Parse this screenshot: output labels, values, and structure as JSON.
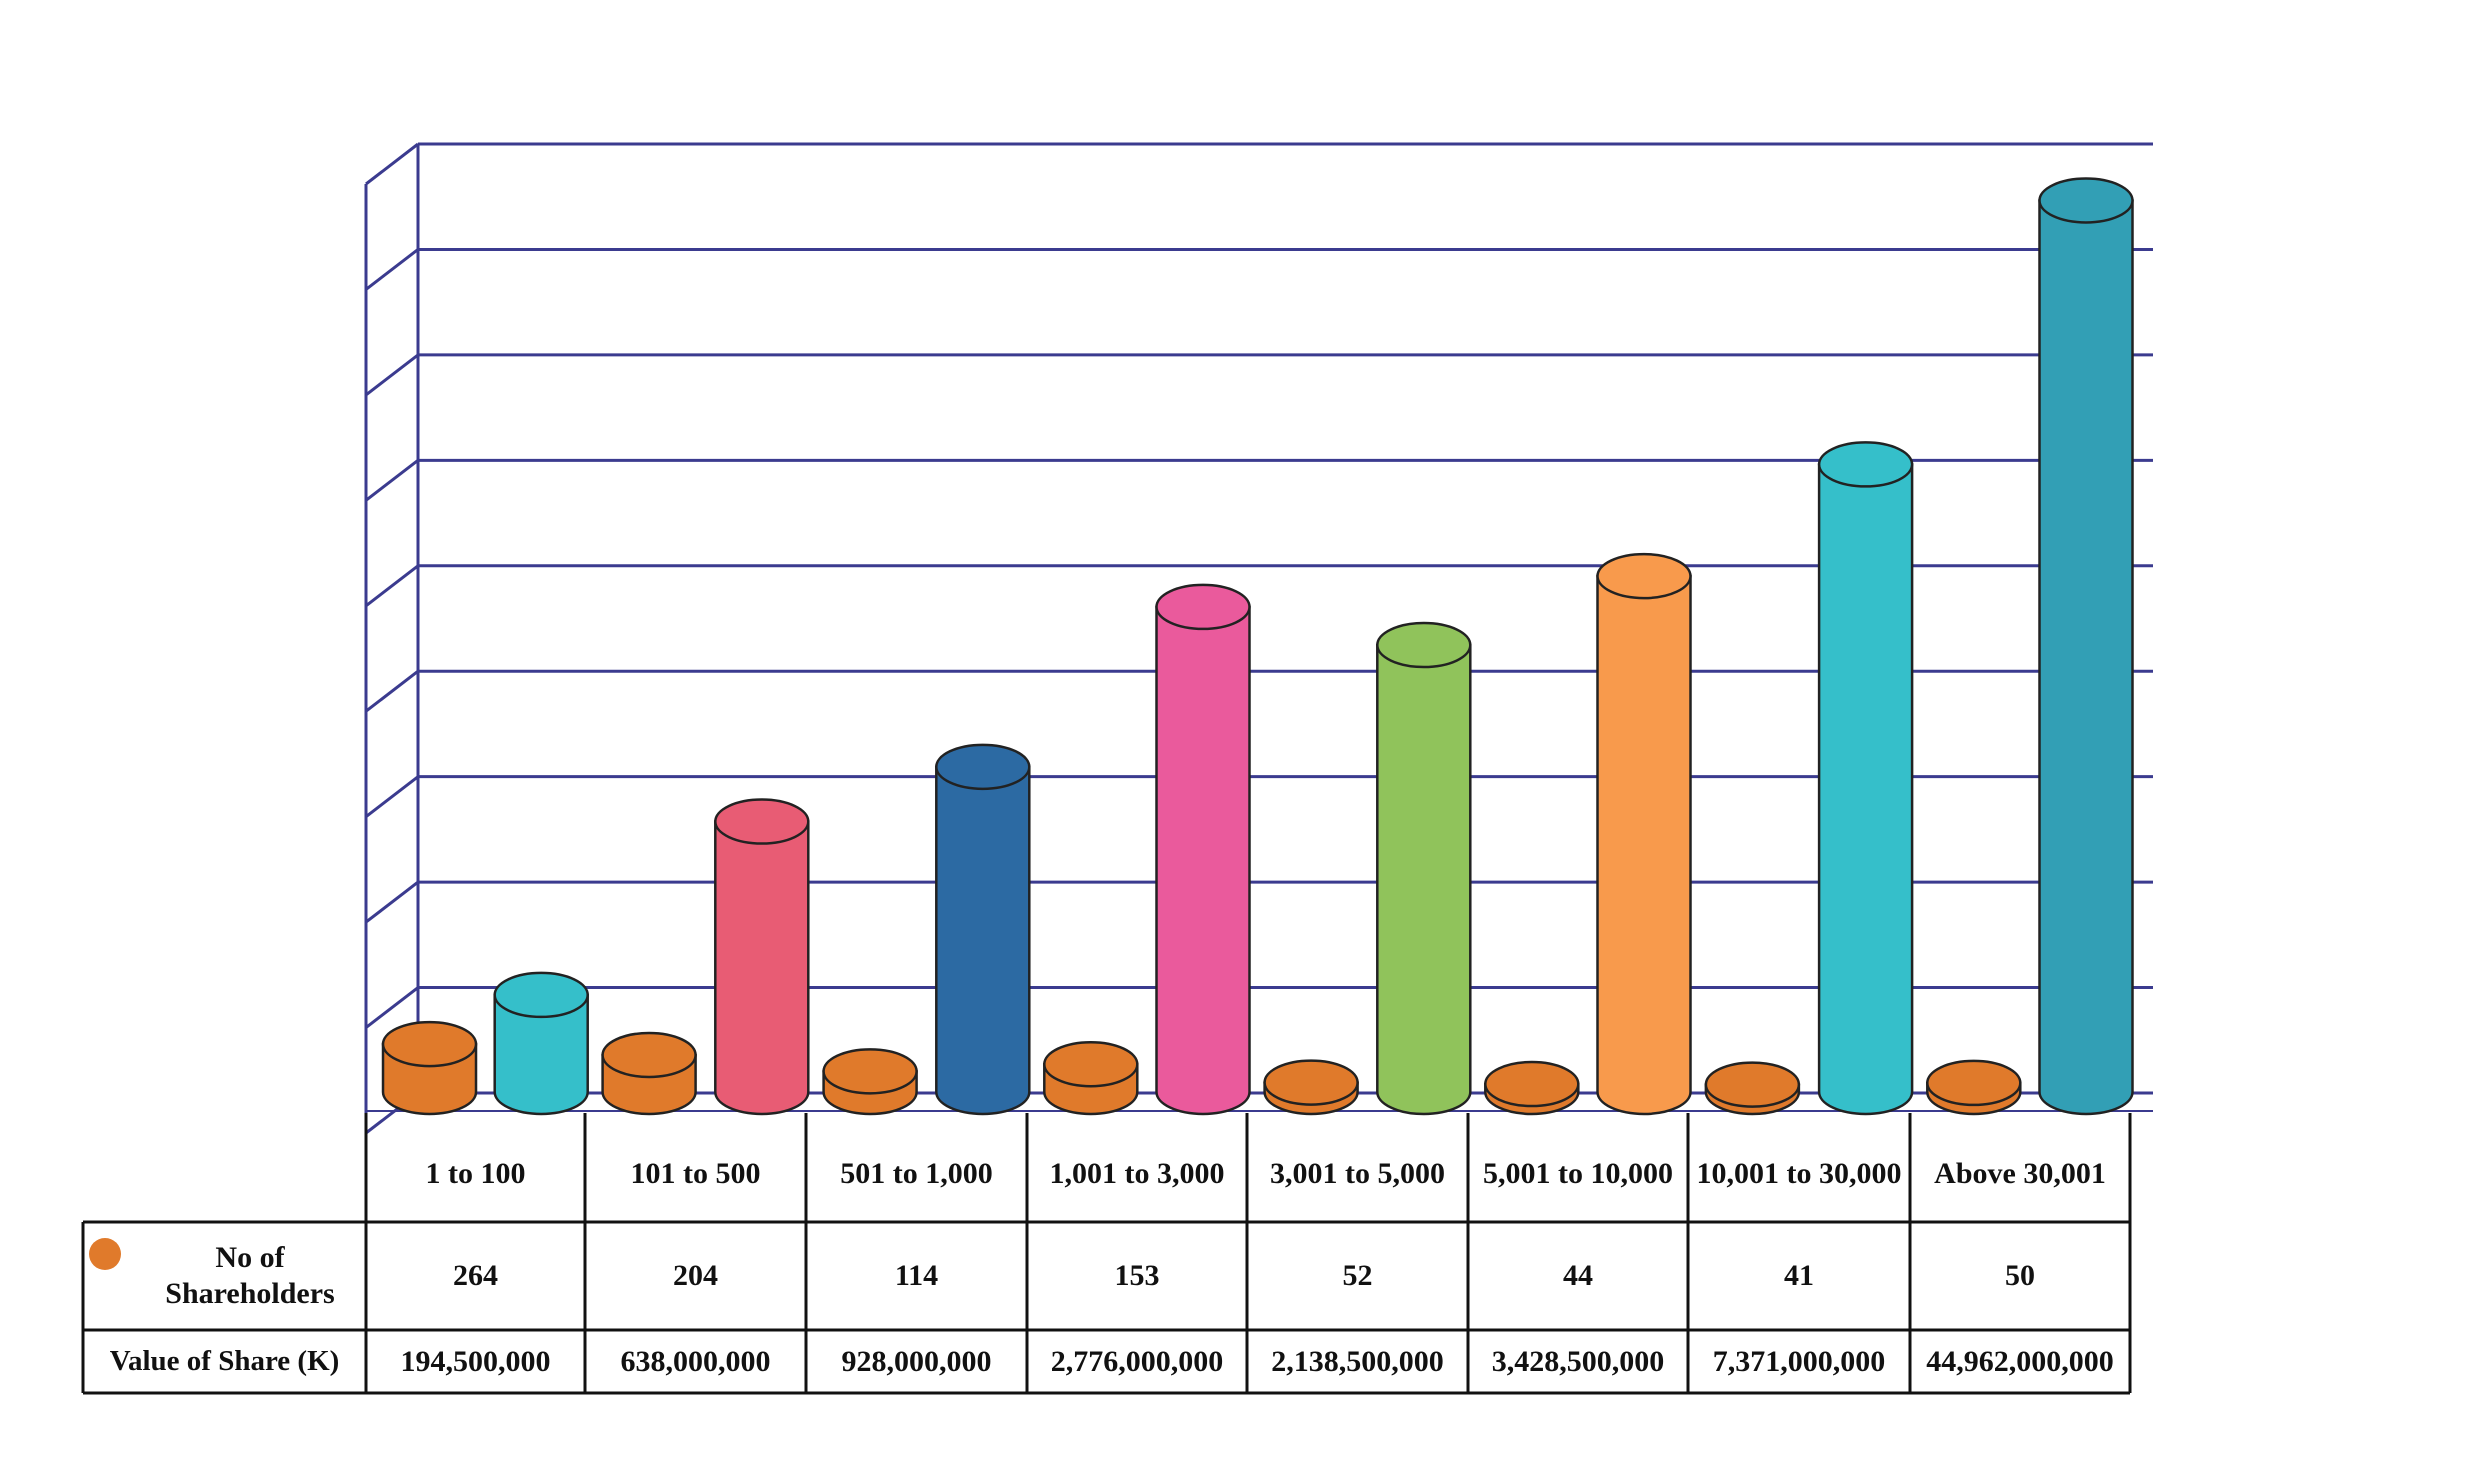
{
  "chart_data": {
    "type": "cylinder",
    "categories": [
      "1 to 100",
      "101 to 500",
      "501 to 1,000",
      "1,001 to 3,000",
      "3,001 to 5,000",
      "5,001 to 10,000",
      "10,001 to 30,000",
      "Above 30,001"
    ],
    "series": [
      {
        "name": "No of Shareholders",
        "color": "#e07a2b",
        "axis": "y2",
        "values": [
          264,
          204,
          114,
          153,
          52,
          44,
          41,
          50
        ]
      },
      {
        "name": "Value of Share (K)",
        "colors": [
          "#35bfca",
          "#e85c74",
          "#2c6aa3",
          "#ea5a9c",
          "#90c35b",
          "#f89a4c",
          "#35bfca",
          "#329fb5"
        ],
        "values": [
          194500000,
          638000000,
          928000000,
          2776000000,
          2138500000,
          3428500000,
          7371000000,
          44962000000
        ],
        "value_labels": [
          "194,500,000",
          "638,000,000",
          "928,000,000",
          "2,776,000,000",
          "2,138,500,000",
          "3,428,500,000",
          "7,371,000,000",
          "44,962,000,000"
        ]
      }
    ],
    "log_scale": true,
    "ylim": [
      100000000,
      50000000000
    ],
    "y2lim": [
      0,
      5000
    ],
    "grid": true
  }
}
